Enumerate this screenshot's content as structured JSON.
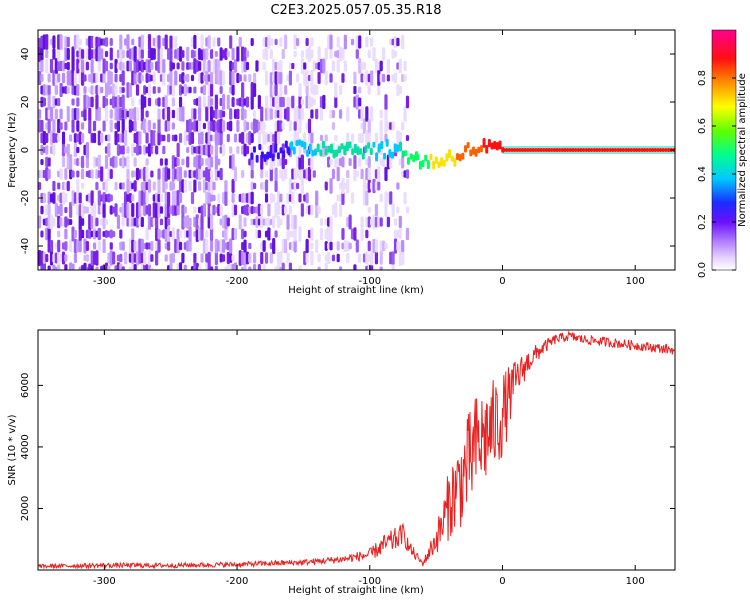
{
  "title": "C2E3.2025.057.05.35.R18",
  "chart_data": [
    {
      "type": "heatmap",
      "xlabel": "Height of straight line (km)",
      "ylabel": "Frequency (Hz)",
      "xlim": [
        -350,
        130
      ],
      "ylim": [
        -50,
        50
      ],
      "x_ticks": [
        -300,
        -200,
        -100,
        0,
        100
      ],
      "y_ticks": [
        -40,
        -20,
        0,
        20,
        40
      ],
      "colorbar": {
        "label": "Normalized spectral amplitude",
        "range": [
          0,
          1
        ],
        "ticks": [
          "0.0",
          "0.2",
          "0.4",
          "0.6",
          "0.8"
        ],
        "tick_values": [
          0.0,
          0.2,
          0.4,
          0.6,
          0.8
        ],
        "colors": [
          "#ffffff",
          "#c9a6ff",
          "#8a2be2",
          "#3b10ff",
          "#00c8ff",
          "#00ff80",
          "#80ff00",
          "#ffff00",
          "#ff8000",
          "#ff0000",
          "#ff0080"
        ]
      },
      "noise_region": {
        "x_range": [
          -350,
          -72
        ],
        "y_range": [
          -50,
          50
        ],
        "dominant_color": "#7a1ee6"
      },
      "blank_region": {
        "x_range": [
          -72,
          130
        ]
      },
      "signal_trace": {
        "x": [
          -190,
          -160,
          -140,
          -120,
          -100,
          -80,
          -72,
          -65,
          -55,
          -45,
          -35,
          -25,
          -15,
          -5,
          0,
          50,
          130
        ],
        "y": [
          -1,
          0,
          1,
          1,
          0,
          0,
          -2,
          -4,
          -5,
          -4,
          -2,
          0,
          1,
          0,
          0,
          0,
          0
        ],
        "amplitude": [
          0.3,
          0.35,
          0.45,
          0.5,
          0.45,
          0.4,
          0.6,
          0.65,
          0.7,
          0.75,
          0.8,
          0.85,
          0.9,
          0.95,
          0.95,
          0.95,
          0.95
        ]
      }
    },
    {
      "type": "line",
      "xlabel": "Height of straight line (km)",
      "ylabel": "SNR (10 * v/v)",
      "xlim": [
        -350,
        130
      ],
      "ylim": [
        0,
        7800
      ],
      "x_ticks": [
        -300,
        -200,
        -100,
        0,
        100
      ],
      "y_ticks": [
        2000,
        4000,
        6000
      ],
      "series": [
        {
          "color": "#e8201f",
          "x": [
            -350,
            -300,
            -250,
            -200,
            -150,
            -120,
            -100,
            -90,
            -80,
            -75,
            -70,
            -60,
            -50,
            -45,
            -40,
            -30,
            -20,
            -10,
            0,
            10,
            20,
            30,
            40,
            50,
            60,
            70,
            80,
            90,
            100,
            110,
            120,
            130
          ],
          "y": [
            120,
            150,
            150,
            180,
            250,
            350,
            500,
            800,
            1000,
            1200,
            700,
            200,
            1000,
            1500,
            2200,
            3000,
            4000,
            4500,
            5000,
            6200,
            6800,
            7200,
            7500,
            7600,
            7500,
            7450,
            7400,
            7350,
            7300,
            7250,
            7200,
            7150
          ],
          "spread": [
            80,
            100,
            100,
            100,
            120,
            150,
            250,
            400,
            500,
            400,
            300,
            100,
            600,
            1000,
            1500,
            2000,
            2200,
            2000,
            1800,
            800,
            500,
            300,
            200,
            200,
            200,
            200,
            200,
            200,
            200,
            200,
            200,
            200
          ]
        }
      ]
    }
  ]
}
